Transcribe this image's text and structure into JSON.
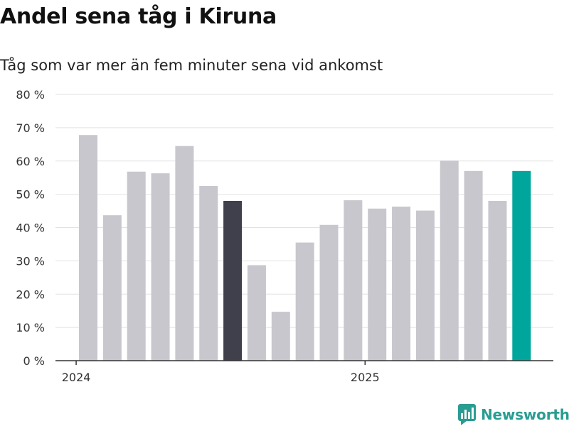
{
  "chart_data": {
    "type": "bar",
    "title": "Andel sena tåg i Kiruna",
    "subtitle": "Tåg som var mer än fem minuter sena vid ankomst",
    "categories": [
      "2024-01",
      "2024-02",
      "2024-03",
      "2024-04",
      "2024-05",
      "2024-06",
      "2024-07",
      "2024-08",
      "2024-09",
      "2024-10",
      "2024-11",
      "2024-12",
      "2025-01",
      "2025-02",
      "2025-03",
      "2025-04",
      "2025-05",
      "2025-06",
      "2025-07"
    ],
    "values": [
      67.8,
      43.7,
      56.8,
      56.3,
      64.5,
      52.5,
      48.0,
      28.7,
      14.7,
      35.5,
      40.8,
      48.2,
      45.7,
      46.3,
      45.1,
      60.1,
      57.0,
      48.0,
      57.0
    ],
    "highlight": {
      "2024-07": "#403f4c",
      "2025-07": "#00a69b"
    },
    "bar_color": "#c8c7cd",
    "ylim": [
      0,
      80
    ],
    "yticks": [
      0,
      10,
      20,
      30,
      40,
      50,
      60,
      70,
      80
    ],
    "ytick_suffix": " %",
    "xtick_labels": [
      {
        "category": "2024-01",
        "label": "2024"
      },
      {
        "category": "2025-01",
        "label": "2025"
      }
    ],
    "grid": true,
    "xlabel": "",
    "ylabel": ""
  },
  "logo": {
    "text": "Newsworthy",
    "color": "#2a9d92"
  }
}
